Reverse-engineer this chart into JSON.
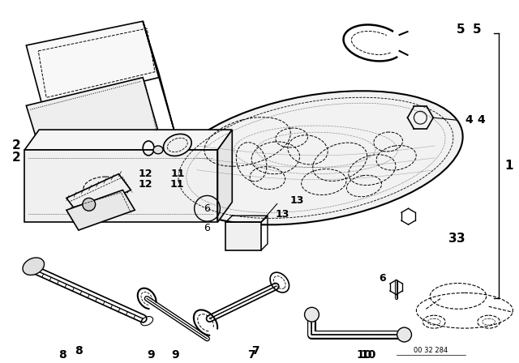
{
  "bg_color": "#ffffff",
  "line_color": "#000000",
  "part_number_text": "00 32 284",
  "figure_width": 6.4,
  "figure_height": 4.48,
  "dpi": 100
}
